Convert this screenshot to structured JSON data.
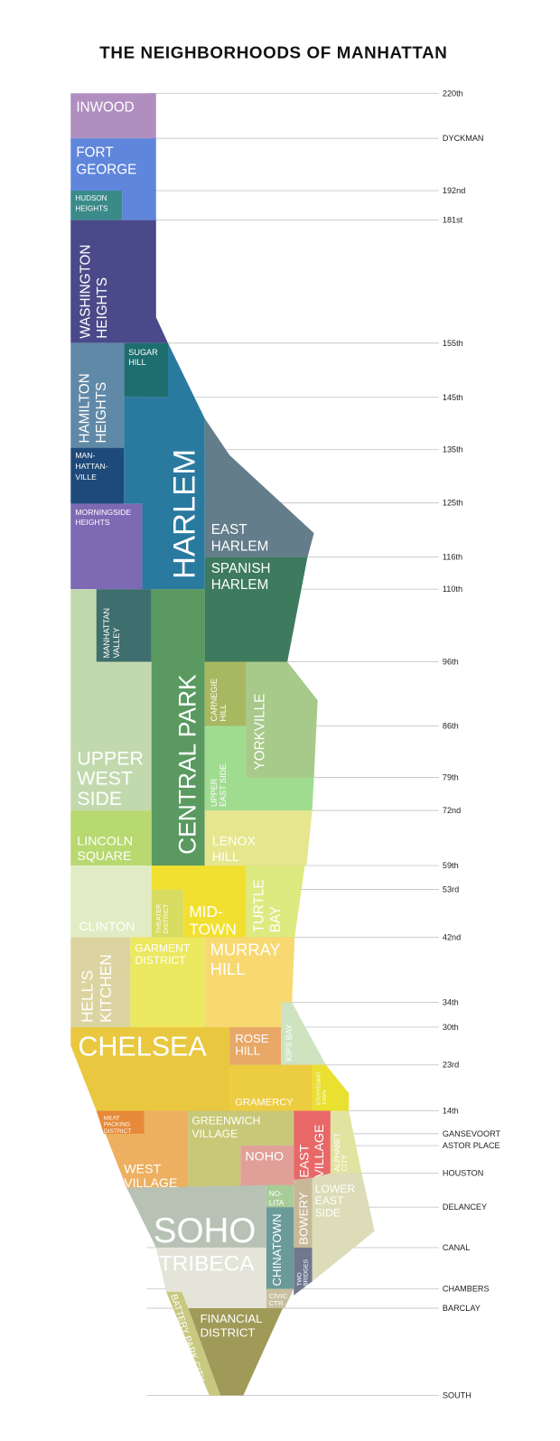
{
  "title": "THE NEIGHBORHOODS OF MANHATTAN",
  "streets": [
    "220th",
    "DYCKMAN",
    "192nd",
    "181st",
    "155th",
    "145th",
    "135th",
    "125th",
    "116th",
    "110th",
    "96th",
    "86th",
    "79th",
    "72nd",
    "59th",
    "53rd",
    "42nd",
    "34th",
    "30th",
    "23rd",
    "14th",
    "GANSEVOORT",
    "ASTOR PLACE",
    "HOUSTON",
    "DELANCEY",
    "CANAL",
    "CHAMBERS",
    "BARCLAY",
    "SOUTH"
  ],
  "neighborhoods": [
    {
      "name": "Inwood",
      "lines": [
        "INWOOD"
      ],
      "color": "#b08fc0"
    },
    {
      "name": "Fort George",
      "lines": [
        "FORT",
        "GEORGE"
      ],
      "color": "#5f86db"
    },
    {
      "name": "Hudson Heights",
      "lines": [
        "HUDSON",
        "HEIGHTS"
      ],
      "color": "#3a8a8a"
    },
    {
      "name": "Washington Heights",
      "lines": [
        "WASHINGTON",
        "HEIGHTS"
      ],
      "color": "#4a4a8a"
    },
    {
      "name": "Sugar Hill",
      "lines": [
        "SUGAR",
        "HILL"
      ],
      "color": "#1e6e70"
    },
    {
      "name": "Hamilton Heights",
      "lines": [
        "HAMILTON",
        "HEIGHTS"
      ],
      "color": "#6089a8"
    },
    {
      "name": "Harlem",
      "lines": [
        "HARLEM"
      ],
      "color": "#2a7aa0"
    },
    {
      "name": "Manhattanville",
      "lines": [
        "MAN-",
        "HATTAN-",
        "VILLE"
      ],
      "color": "#1e4a7a"
    },
    {
      "name": "Morningside Heights",
      "lines": [
        "MORNINGSIDE",
        "HEIGHTS"
      ],
      "color": "#7e6ab4"
    },
    {
      "name": "East Harlem",
      "lines": [
        "EAST",
        "HARLEM"
      ],
      "color": "#637d8a"
    },
    {
      "name": "Spanish Harlem",
      "lines": [
        "SPANISH",
        "HARLEM"
      ],
      "color": "#3d7a5e"
    },
    {
      "name": "Upper West Side",
      "lines": [
        "UPPER",
        "WEST",
        "SIDE"
      ],
      "color": "#c2d9ae"
    },
    {
      "name": "Manhattan Valley",
      "lines": [
        "MANHATTAN",
        "VALLEY"
      ],
      "color": "#3e6e6e"
    },
    {
      "name": "Central Park",
      "lines": [
        "CENTRAL PARK"
      ],
      "color": "#5a9a60"
    },
    {
      "name": "Carnegie Hill",
      "lines": [
        "CARNEGIE",
        "HILL"
      ],
      "color": "#a8b860"
    },
    {
      "name": "Yorkville",
      "lines": [
        "YORKVILLE"
      ],
      "color": "#a7c98a"
    },
    {
      "name": "Upper East Side",
      "lines": [
        "UPPER",
        "EAST SIDE"
      ],
      "color": "#a0dc90"
    },
    {
      "name": "Lincoln Square",
      "lines": [
        "LINCOLN",
        "SQUARE"
      ],
      "color": "#b8d870"
    },
    {
      "name": "Lenox Hill",
      "lines": [
        "LENOX",
        "HILL"
      ],
      "color": "#e6e68e"
    },
    {
      "name": "Clinton",
      "lines": [
        "CLINTON"
      ],
      "color": "#e2ecc4"
    },
    {
      "name": "Midtown",
      "lines": [
        "MID-",
        "TOWN"
      ],
      "color": "#f2e030"
    },
    {
      "name": "Theater District",
      "lines": [
        "THEATER",
        "DISTRICT"
      ],
      "color": "#d8dc60"
    },
    {
      "name": "Turtle Bay",
      "lines": [
        "TURTLE",
        "BAY"
      ],
      "color": "#dcea80"
    },
    {
      "name": "Hell's Kitchen",
      "lines": [
        "HELL'S",
        "KITCHEN"
      ],
      "color": "#dcd4a0"
    },
    {
      "name": "Garment District",
      "lines": [
        "GARMENT",
        "DISTRICT"
      ],
      "color": "#ece860"
    },
    {
      "name": "Murray Hill",
      "lines": [
        "MURRAY",
        "HILL"
      ],
      "color": "#f8d870"
    },
    {
      "name": "Kips Bay",
      "lines": [
        "KIPS BAY"
      ],
      "color": "#cfe3c0"
    },
    {
      "name": "Chelsea",
      "lines": [
        "CHELSEA"
      ],
      "color": "#e9c840"
    },
    {
      "name": "Rose Hill",
      "lines": [
        "ROSE",
        "HILL"
      ],
      "color": "#e8a868"
    },
    {
      "name": "Gramercy",
      "lines": [
        "GRAMERCY"
      ],
      "color": "#eccc40"
    },
    {
      "name": "Stuyvesant Town",
      "lines": [
        "STUYVESANT",
        "TOWN"
      ],
      "color": "#eae030"
    },
    {
      "name": "West Village",
      "lines": [
        "WEST",
        "VILLAGE"
      ],
      "color": "#ecb060"
    },
    {
      "name": "Meat Packing District",
      "lines": [
        "MEAT",
        "PACKING",
        "DISTRICT"
      ],
      "color": "#e68a3a"
    },
    {
      "name": "Greenwich Village",
      "lines": [
        "GREENWICH",
        "VILLAGE"
      ],
      "color": "#c8c878"
    },
    {
      "name": "NoHo",
      "lines": [
        "NOHO"
      ],
      "color": "#e0a098"
    },
    {
      "name": "East Village",
      "lines": [
        "EAST",
        "VILLAGE"
      ],
      "color": "#e86868"
    },
    {
      "name": "Alphabet City",
      "lines": [
        "ALPHABET",
        "CITY"
      ],
      "color": "#e0e4a0"
    },
    {
      "name": "Lower East Side",
      "lines": [
        "LOWER",
        "EAST",
        "SIDE"
      ],
      "color": "#dcdcb8"
    },
    {
      "name": "Two Bridges",
      "lines": [
        "TWO",
        "BRIDGES"
      ],
      "color": "#707890"
    },
    {
      "name": "Bowery",
      "lines": [
        "BOWERY"
      ],
      "color": "#c8b898"
    },
    {
      "name": "NoLita",
      "lines": [
        "NO-",
        "LITA"
      ],
      "color": "#a8cc98"
    },
    {
      "name": "Chinatown",
      "lines": [
        "CHINATOWN"
      ],
      "color": "#6a9a9a"
    },
    {
      "name": "Civic Center",
      "lines": [
        "CIVIC",
        "CTR"
      ],
      "color": "#c8c0a0"
    },
    {
      "name": "SoHo",
      "lines": [
        "SOHO"
      ],
      "color": "#b8c2b4"
    },
    {
      "name": "Tribeca",
      "lines": [
        "TRIBECA"
      ],
      "color": "#e4e4d8"
    },
    {
      "name": "Financial District",
      "lines": [
        "FINANCIAL",
        "DISTRICT"
      ],
      "color": "#a09a58"
    },
    {
      "name": "Battery Park City",
      "lines": [
        "BATTERY PARK CITY"
      ],
      "color": "#c8c880"
    }
  ]
}
